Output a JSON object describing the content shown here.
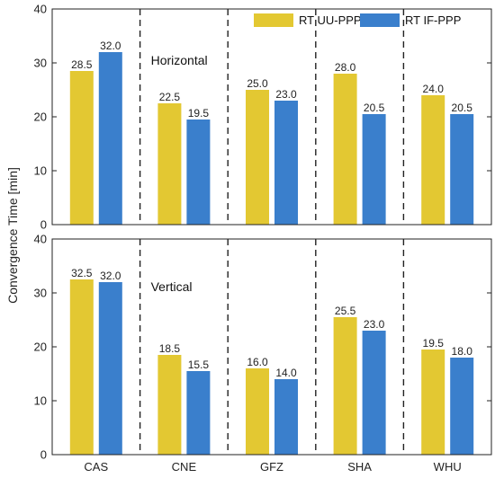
{
  "chart_data": {
    "type": "bar",
    "ylabel": "Convergence Time  [min]",
    "categories": [
      "CAS",
      "CNE",
      "GFZ",
      "SHA",
      "WHU"
    ],
    "ylim": [
      0,
      40
    ],
    "yticks": [
      0,
      10,
      20,
      30,
      40
    ],
    "legend": {
      "placement": "top-right",
      "entries": [
        "RT UU-PPP",
        "RT IF-PPP"
      ]
    },
    "colors": {
      "RT UU-PPP": "#E3C832",
      "RT IF-PPP": "#3A7FCC"
    },
    "panels": [
      {
        "title": "Horizontal",
        "series": [
          {
            "name": "RT UU-PPP",
            "values": [
              28.5,
              22.5,
              25.0,
              28.0,
              24.0
            ]
          },
          {
            "name": "RT IF-PPP",
            "values": [
              32.0,
              19.5,
              23.0,
              20.5,
              20.5
            ]
          }
        ],
        "data_labels": [
          [
            "28.5",
            "22.5",
            "25.0",
            "28.0",
            "24.0"
          ],
          [
            "32.0",
            "19.5",
            "23.0",
            "20.5",
            "20.5"
          ]
        ]
      },
      {
        "title": "Vertical",
        "series": [
          {
            "name": "RT UU-PPP",
            "values": [
              32.5,
              18.5,
              16.0,
              25.5,
              19.5
            ]
          },
          {
            "name": "RT IF-PPP",
            "values": [
              32.0,
              15.5,
              14.0,
              23.0,
              18.0
            ]
          }
        ],
        "data_labels": [
          [
            "32.5",
            "18.5",
            "16.0",
            "25.5",
            "19.5"
          ],
          [
            "32.0",
            "15.5",
            "14.0",
            "23.0",
            "18.0"
          ]
        ]
      }
    ]
  }
}
